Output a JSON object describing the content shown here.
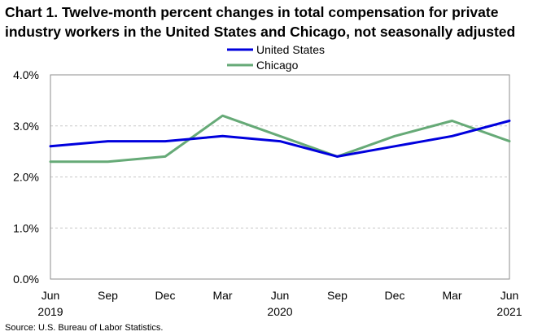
{
  "title_lines": [
    "Chart 1. Twelve-month percent changes in total compensation for private",
    "industry workers in the United States and Chicago, not seasonally adjusted"
  ],
  "source": "Source: U.S. Bureau of Labor Statistics.",
  "chart_data": {
    "type": "line",
    "title": "Chart 1. Twelve-month percent changes in total compensation for private industry workers in the United States and Chicago, not seasonally adjusted",
    "categories": [
      "Jun 2019",
      "Sep 2019",
      "Dec 2019",
      "Mar 2020",
      "Jun 2020",
      "Sep 2020",
      "Dec 2020",
      "Mar 2021",
      "Jun 2021"
    ],
    "tick_labels": [
      {
        "month": "Jun",
        "year": "2019"
      },
      {
        "month": "Sep",
        "year": ""
      },
      {
        "month": "Dec",
        "year": ""
      },
      {
        "month": "Mar",
        "year": ""
      },
      {
        "month": "Jun",
        "year": "2020"
      },
      {
        "month": "Sep",
        "year": ""
      },
      {
        "month": "Dec",
        "year": ""
      },
      {
        "month": "Mar",
        "year": ""
      },
      {
        "month": "Jun",
        "year": "2021"
      }
    ],
    "series": [
      {
        "name": "United States",
        "color": "#0000dd",
        "values": [
          2.6,
          2.7,
          2.7,
          2.8,
          2.7,
          2.4,
          2.6,
          2.8,
          3.1
        ]
      },
      {
        "name": "Chicago",
        "color": "#66aa77",
        "values": [
          2.3,
          2.3,
          2.4,
          3.2,
          2.8,
          2.4,
          2.8,
          3.1,
          2.7
        ]
      }
    ],
    "y_ticks": [
      0,
      1,
      2,
      3,
      4
    ],
    "y_tick_labels": [
      "0.0%",
      "1.0%",
      "2.0%",
      "3.0%",
      "4.0%"
    ],
    "ylim": [
      0,
      4
    ],
    "xlabel": "",
    "ylabel": "",
    "grid": "horizontal dashed",
    "legend_position": "top-center"
  }
}
